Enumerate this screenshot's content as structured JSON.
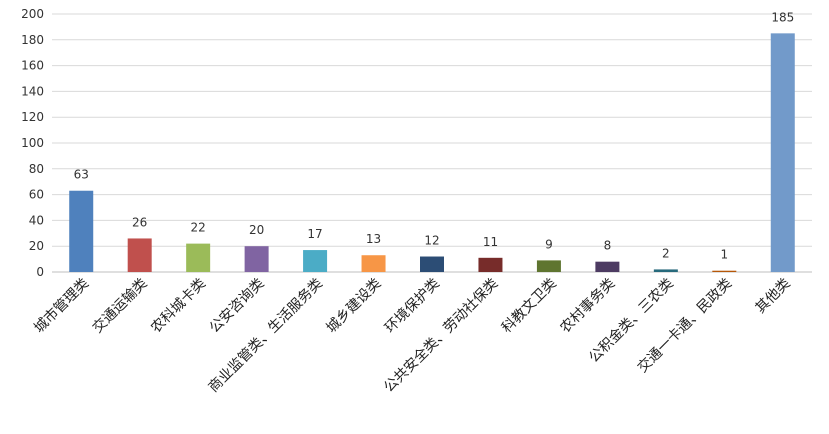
{
  "chart_data": {
    "type": "bar",
    "categories": [
      "城市管理类",
      "交通运输类",
      "农科城卡类",
      "公安咨询类",
      "商业监管类、生活服务类",
      "城乡建设类",
      "环境保护类",
      "公共安全类、劳动社保类",
      "科教文卫类",
      "农村事务类",
      "公积金类、三农类",
      "交通一卡通、民政类",
      "其他类"
    ],
    "values": [
      63,
      26,
      22,
      20,
      17,
      13,
      12,
      11,
      9,
      8,
      2,
      1,
      185
    ],
    "colors": [
      "#4f81bd",
      "#c0504d",
      "#9bbb59",
      "#8064a2",
      "#4bacc6",
      "#f79646",
      "#2c4d75",
      "#772c2a",
      "#5f7530",
      "#4d3b62",
      "#276a7c",
      "#b65708",
      "#729aca"
    ],
    "ylim": [
      0,
      200
    ],
    "yticks": [
      0,
      20,
      40,
      60,
      80,
      100,
      120,
      140,
      160,
      180,
      200
    ],
    "grid": true,
    "title": "",
    "xlabel": "",
    "ylabel": ""
  }
}
